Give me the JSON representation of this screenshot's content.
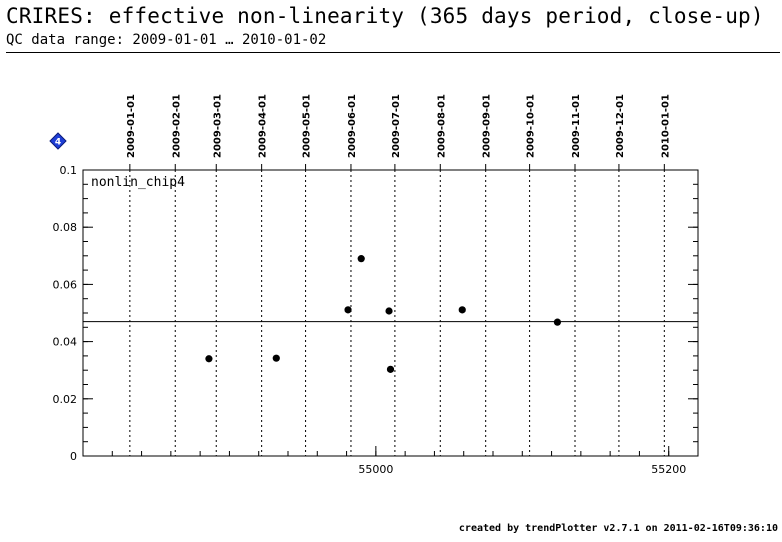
{
  "header": {
    "title": "CRIRES: effective non-linearity (365 days period, close-up)",
    "subtitle": "QC data range: 2009-01-01 … 2010-01-02"
  },
  "footer": {
    "text": "created by trendPlotter v2.7.1 on 2011-02-16T09:36:10"
  },
  "marker": {
    "icon": "diamond-icon",
    "label": "4",
    "color": "#1f3fd6"
  },
  "chart_data": {
    "type": "scatter",
    "panel_label": "nonlin_chip4",
    "xlim": [
      54800,
      55220
    ],
    "ylim": [
      0,
      0.1
    ],
    "x_ticks": [
      55000,
      55200
    ],
    "y_ticks": [
      0,
      0.02,
      0.04,
      0.06,
      0.08,
      0.1
    ],
    "y_tick_labels": [
      "0",
      "0.02",
      "0.04",
      "0.06",
      "0.08",
      "0.1"
    ],
    "date_lines": [
      {
        "mjd": 54832,
        "label": "2009-01-01"
      },
      {
        "mjd": 54863,
        "label": "2009-02-01"
      },
      {
        "mjd": 54891,
        "label": "2009-03-01"
      },
      {
        "mjd": 54922,
        "label": "2009-04-01"
      },
      {
        "mjd": 54952,
        "label": "2009-05-01"
      },
      {
        "mjd": 54983,
        "label": "2009-06-01"
      },
      {
        "mjd": 55013,
        "label": "2009-07-01"
      },
      {
        "mjd": 55044,
        "label": "2009-08-01"
      },
      {
        "mjd": 55075,
        "label": "2009-09-01"
      },
      {
        "mjd": 55105,
        "label": "2009-10-01"
      },
      {
        "mjd": 55136,
        "label": "2009-11-01"
      },
      {
        "mjd": 55166,
        "label": "2009-12-01"
      },
      {
        "mjd": 55197,
        "label": "2010-01-01"
      }
    ],
    "reference_line": 0.047,
    "points": [
      {
        "x": 54886,
        "y": 0.034
      },
      {
        "x": 54932,
        "y": 0.0342
      },
      {
        "x": 54981,
        "y": 0.0511
      },
      {
        "x": 54990,
        "y": 0.069
      },
      {
        "x": 55009,
        "y": 0.0507
      },
      {
        "x": 55010,
        "y": 0.0303
      },
      {
        "x": 55059,
        "y": 0.0511
      },
      {
        "x": 55124,
        "y": 0.0468
      }
    ]
  }
}
